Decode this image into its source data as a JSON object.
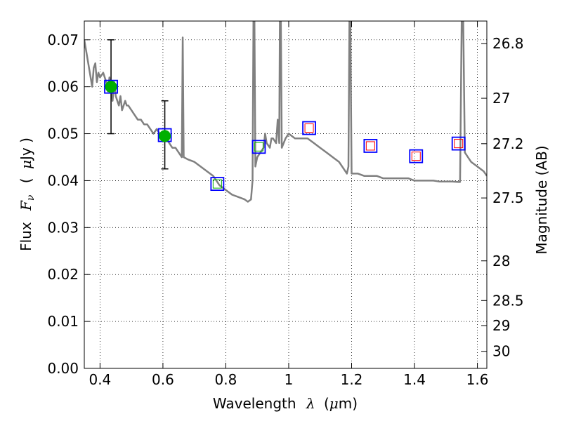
{
  "chart_data": {
    "type": "scatter",
    "title": "",
    "xlabel_text": "Wavelength",
    "xlabel_sym": "λ",
    "xlabel_unit_open": "(",
    "xlabel_unit_mu": "μ",
    "xlabel_unit_rest": "m)",
    "ylabel_text": "Flux",
    "ylabel_sym": "F",
    "ylabel_sub": "ν",
    "ylabel_unit_open": "(",
    "ylabel_unit_mu": "μ",
    "ylabel_unit_rest": "Jy )",
    "y2label": "Magnitude (AB)",
    "xlim": [
      0.35,
      1.63
    ],
    "ylim": [
      0.0,
      0.074
    ],
    "grid": true,
    "x_ticks": [
      0.4,
      0.6,
      0.8,
      1.0,
      1.2,
      1.4,
      1.6
    ],
    "x_tick_labels": [
      "0.4",
      "0.6",
      "0.8",
      "1",
      "1.2",
      "1.4",
      "1.6"
    ],
    "y_ticks": [
      0.0,
      0.01,
      0.02,
      0.03,
      0.04,
      0.05,
      0.06,
      0.07
    ],
    "y_tick_labels": [
      "0.00",
      "0.01",
      "0.02",
      "0.03",
      "0.04",
      "0.05",
      "0.06",
      "0.07"
    ],
    "mag_ticks": [
      26.8,
      27.0,
      27.2,
      27.5,
      28.0,
      28.5,
      29.0,
      30.0
    ],
    "mag_tick_labels": [
      "26.8",
      "27",
      "27.2",
      "27.5",
      "28",
      "28.5",
      "29",
      "30"
    ],
    "colors": {
      "sed": "#808080",
      "detection": "#00b000",
      "model_box": "#0000ff",
      "observed_box": "#00b000",
      "upper_box": "#ff0000",
      "errorbar": "#000000",
      "grid": "#000000"
    },
    "sed_model": [
      [
        0.35,
        0.07
      ],
      [
        0.36,
        0.066
      ],
      [
        0.37,
        0.062
      ],
      [
        0.375,
        0.06
      ],
      [
        0.38,
        0.064
      ],
      [
        0.385,
        0.065
      ],
      [
        0.39,
        0.061
      ],
      [
        0.395,
        0.063
      ],
      [
        0.4,
        0.062
      ],
      [
        0.41,
        0.063
      ],
      [
        0.42,
        0.061
      ],
      [
        0.425,
        0.059
      ],
      [
        0.43,
        0.062
      ],
      [
        0.44,
        0.057
      ],
      [
        0.445,
        0.061
      ],
      [
        0.45,
        0.058
      ],
      [
        0.46,
        0.056
      ],
      [
        0.465,
        0.058
      ],
      [
        0.47,
        0.055
      ],
      [
        0.48,
        0.057
      ],
      [
        0.485,
        0.056
      ],
      [
        0.49,
        0.056
      ],
      [
        0.5,
        0.055
      ],
      [
        0.51,
        0.054
      ],
      [
        0.52,
        0.053
      ],
      [
        0.53,
        0.053
      ],
      [
        0.54,
        0.052
      ],
      [
        0.55,
        0.052
      ],
      [
        0.56,
        0.051
      ],
      [
        0.57,
        0.05
      ],
      [
        0.58,
        0.051
      ],
      [
        0.59,
        0.05
      ],
      [
        0.6,
        0.049
      ],
      [
        0.61,
        0.049
      ],
      [
        0.62,
        0.048
      ],
      [
        0.63,
        0.047
      ],
      [
        0.64,
        0.047
      ],
      [
        0.65,
        0.046
      ],
      [
        0.66,
        0.045
      ],
      [
        0.663,
        0.0705
      ],
      [
        0.666,
        0.045
      ],
      [
        0.68,
        0.0445
      ],
      [
        0.7,
        0.044
      ],
      [
        0.72,
        0.043
      ],
      [
        0.74,
        0.042
      ],
      [
        0.76,
        0.041
      ],
      [
        0.78,
        0.039
      ],
      [
        0.8,
        0.038
      ],
      [
        0.82,
        0.037
      ],
      [
        0.84,
        0.0365
      ],
      [
        0.86,
        0.036
      ],
      [
        0.87,
        0.0355
      ],
      [
        0.88,
        0.036
      ],
      [
        0.885,
        0.04
      ],
      [
        0.888,
        0.074
      ],
      [
        0.891,
        0.074
      ],
      [
        0.894,
        0.043
      ],
      [
        0.9,
        0.045
      ],
      [
        0.91,
        0.046
      ],
      [
        0.92,
        0.047
      ],
      [
        0.925,
        0.05
      ],
      [
        0.93,
        0.048
      ],
      [
        0.94,
        0.047
      ],
      [
        0.945,
        0.049
      ],
      [
        0.95,
        0.049
      ],
      [
        0.96,
        0.048
      ],
      [
        0.965,
        0.053
      ],
      [
        0.97,
        0.048
      ],
      [
        0.972,
        0.074
      ],
      [
        0.975,
        0.074
      ],
      [
        0.978,
        0.047
      ],
      [
        0.99,
        0.049
      ],
      [
        1.0,
        0.05
      ],
      [
        1.02,
        0.049
      ],
      [
        1.04,
        0.049
      ],
      [
        1.06,
        0.049
      ],
      [
        1.08,
        0.048
      ],
      [
        1.1,
        0.047
      ],
      [
        1.12,
        0.046
      ],
      [
        1.14,
        0.045
      ],
      [
        1.16,
        0.044
      ],
      [
        1.18,
        0.042
      ],
      [
        1.185,
        0.0415
      ],
      [
        1.19,
        0.043
      ],
      [
        1.193,
        0.074
      ],
      [
        1.196,
        0.074
      ],
      [
        1.2,
        0.0415
      ],
      [
        1.22,
        0.0415
      ],
      [
        1.24,
        0.041
      ],
      [
        1.26,
        0.041
      ],
      [
        1.28,
        0.041
      ],
      [
        1.3,
        0.0405
      ],
      [
        1.32,
        0.0405
      ],
      [
        1.34,
        0.0405
      ],
      [
        1.36,
        0.0405
      ],
      [
        1.38,
        0.0405
      ],
      [
        1.4,
        0.04
      ],
      [
        1.42,
        0.04
      ],
      [
        1.44,
        0.04
      ],
      [
        1.46,
        0.04
      ],
      [
        1.48,
        0.0398
      ],
      [
        1.5,
        0.0398
      ],
      [
        1.52,
        0.0398
      ],
      [
        1.54,
        0.0397
      ],
      [
        1.545,
        0.0397
      ],
      [
        1.55,
        0.074
      ],
      [
        1.555,
        0.074
      ],
      [
        1.56,
        0.046
      ],
      [
        1.57,
        0.045
      ],
      [
        1.58,
        0.044
      ],
      [
        1.6,
        0.043
      ],
      [
        1.62,
        0.042
      ],
      [
        1.63,
        0.041
      ]
    ],
    "detections": [
      {
        "x": 0.435,
        "y": 0.06,
        "yerr_lo": 0.05,
        "yerr_hi": 0.07
      },
      {
        "x": 0.606,
        "y": 0.0495,
        "yerr_lo": 0.0425,
        "yerr_hi": 0.057
      }
    ],
    "model_boxes": [
      {
        "x": 0.435,
        "y": 0.06
      },
      {
        "x": 0.606,
        "y": 0.0497
      },
      {
        "x": 0.773,
        "y": 0.0393
      },
      {
        "x": 0.905,
        "y": 0.0472
      },
      {
        "x": 1.065,
        "y": 0.0512
      },
      {
        "x": 1.26,
        "y": 0.0474
      },
      {
        "x": 1.405,
        "y": 0.0452
      },
      {
        "x": 1.54,
        "y": 0.0479
      }
    ],
    "observed_boxes": [
      {
        "x": 0.773,
        "y": 0.0393
      },
      {
        "x": 0.905,
        "y": 0.0472
      }
    ],
    "upper_limit_boxes": [
      {
        "x": 1.065,
        "y": 0.0512
      },
      {
        "x": 1.26,
        "y": 0.0474
      },
      {
        "x": 1.405,
        "y": 0.0452
      },
      {
        "x": 1.54,
        "y": 0.0479
      }
    ]
  }
}
